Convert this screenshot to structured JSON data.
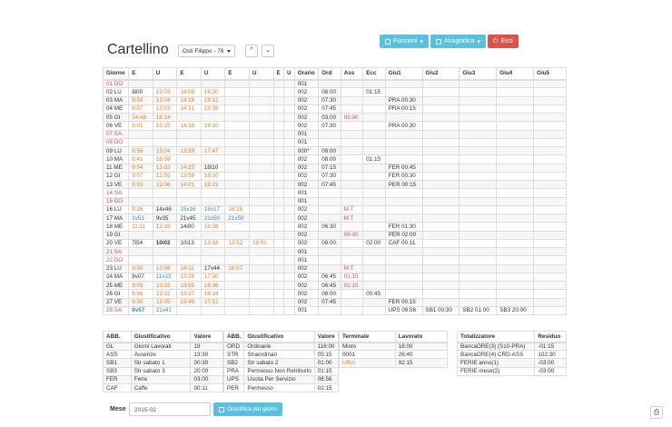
{
  "toolbar": {
    "funzioni": "Funzioni",
    "anagrafica": "Anagrafica",
    "esci": "Esci"
  },
  "page_title": "Cartellino",
  "employee_select": "Osti Filippo - 76",
  "nav": {
    "prev": "^",
    "next": "v"
  },
  "columns": [
    "Giorno",
    "E",
    "U",
    "E",
    "U",
    "E",
    "U",
    "E",
    "U",
    "Orario",
    "Ord",
    "Ass",
    "Ecc",
    "Giu1",
    "Giu2",
    "Giu3",
    "Giu4",
    "Giu5"
  ],
  "rows": [
    {
      "c": [
        "01 DO",
        "",
        "",
        "",
        "",
        "",
        "",
        "",
        "",
        "001",
        "",
        "",
        "",
        "",
        "",
        "",
        "",
        ""
      ],
      "red": true
    },
    {
      "c": [
        "02 LU",
        "8i00",
        "13:03",
        "14:08",
        "18:30",
        "",
        "",
        "",
        "",
        "002",
        "08:00",
        "",
        "01:15",
        "",
        "",
        "",
        "",
        ""
      ]
    },
    {
      "c": [
        "03 MA",
        "8:58",
        "13:04",
        "14:18",
        "18:12",
        "",
        "",
        "",
        "",
        "002",
        "07:30",
        "",
        "",
        "PRA 00:30",
        "",
        "",
        "",
        ""
      ]
    },
    {
      "c": [
        "04 ME",
        "8:57",
        "13:03",
        "14:31",
        "18:36",
        "",
        "",
        "",
        "",
        "002",
        "07:45",
        "",
        "",
        "PRA 00:15",
        "",
        "",
        "",
        ""
      ]
    },
    {
      "c": [
        "05 GI",
        "14:48",
        "18:14",
        "",
        "",
        "",
        "",
        "",
        "",
        "002",
        "03:00",
        "05:00",
        "",
        "",
        "",
        "",
        "",
        ""
      ]
    },
    {
      "c": [
        "06 VE",
        "9:01",
        "13:15",
        "14:18",
        "18:10",
        "",
        "",
        "",
        "",
        "002",
        "07:30",
        "",
        "",
        "PRA 00:30",
        "",
        "",
        "",
        ""
      ]
    },
    {
      "c": [
        "07 SA",
        "",
        "",
        "",
        "",
        "",
        "",
        "",
        "",
        "001",
        "",
        "",
        "",
        "",
        "",
        "",
        "",
        ""
      ],
      "red": true
    },
    {
      "c": [
        "08 DO",
        "",
        "",
        "",
        "",
        "",
        "",
        "",
        "",
        "001",
        "",
        "",
        "",
        "",
        "",
        "",
        "",
        ""
      ],
      "red": true
    },
    {
      "c": [
        "09 LU",
        "8:56",
        "13:04",
        "13:59",
        "17:47",
        "",
        "",
        "",
        "",
        "000*",
        "08:00",
        "",
        "",
        "",
        "",
        "",
        "",
        ""
      ]
    },
    {
      "c": [
        "10 MA",
        "8:41",
        "18:09",
        "",
        "",
        "",
        "",
        "",
        "",
        "002",
        "08:00",
        "",
        "01:15",
        "",
        "",
        "",
        "",
        ""
      ]
    },
    {
      "c": [
        "11 ME",
        "9:04",
        "13:03",
        "14:25",
        "18i10",
        "",
        "",
        "",
        "",
        "002",
        "07:15",
        "",
        "",
        "FER 00:45",
        "",
        "",
        "",
        ""
      ]
    },
    {
      "c": [
        "12 GI",
        "9:07",
        "12:59",
        "13:59",
        "18:10",
        "",
        "",
        "",
        "",
        "002",
        "07:30",
        "",
        "",
        "FER 00:30",
        "",
        "",
        "",
        ""
      ]
    },
    {
      "c": [
        "13 VE",
        "9:03",
        "13:06",
        "14:01",
        "18:21",
        "",
        "",
        "",
        "",
        "002",
        "07:45",
        "",
        "",
        "PER 00:15",
        "",
        "",
        "",
        ""
      ]
    },
    {
      "c": [
        "14 SA",
        "",
        "",
        "",
        "",
        "",
        "",
        "",
        "",
        "001",
        "",
        "",
        "",
        "",
        "",
        "",
        "",
        ""
      ],
      "red": true
    },
    {
      "c": [
        "15 DO",
        "",
        "",
        "",
        "",
        "",
        "",
        "",
        "",
        "001",
        "",
        "",
        "",
        "",
        "",
        "",
        "",
        ""
      ],
      "red": true
    },
    {
      "c": [
        "16 LU",
        "9:16",
        "14x46",
        "15v16",
        "15v17",
        "18:15",
        "",
        "",
        "",
        "002",
        "",
        "M.T",
        "",
        "",
        "",
        "",
        "",
        ""
      ]
    },
    {
      "c": [
        "17 MA",
        "1v51",
        "9v35",
        "21v45",
        "21v50",
        "21v50",
        "",
        "",
        "",
        "002",
        "",
        "M.T",
        "",
        "",
        "",
        "",
        "",
        ""
      ]
    },
    {
      "c": [
        "18 ME",
        "11:11",
        "13:18",
        "14i00",
        "18:38",
        "",
        "",
        "",
        "",
        "002",
        "06:30",
        "",
        "",
        "FER 01:30",
        "",
        "",
        "",
        ""
      ]
    },
    {
      "c": [
        "19 GI",
        "",
        "",
        "",
        "",
        "",
        "",
        "",
        "",
        "002",
        "",
        "06:00",
        "",
        "PER 02:00",
        "",
        "",
        "",
        ""
      ]
    },
    {
      "c": [
        "20 VE",
        "7i54",
        "10i02",
        "10i13",
        "13:16",
        "13:52",
        "19:01",
        "",
        "",
        "002",
        "08:00",
        "",
        "02:00",
        "CAF 00:11",
        "",
        "",
        "",
        ""
      ]
    },
    {
      "c": [
        "21 SA",
        "",
        "",
        "",
        "",
        "",
        "",
        "",
        "",
        "001",
        "",
        "",
        "",
        "",
        "",
        "",
        "",
        ""
      ],
      "red": true
    },
    {
      "c": [
        "22 DO",
        "",
        "",
        "",
        "",
        "",
        "",
        "",
        "",
        "001",
        "",
        "",
        "",
        "",
        "",
        "",
        "",
        ""
      ],
      "red": true
    },
    {
      "c": [
        "23 LU",
        "9:00",
        "13:08",
        "14:11",
        "17v44",
        "18:07",
        "",
        "",
        "",
        "002",
        "",
        "M.T",
        "",
        "",
        "",
        "",
        "",
        ""
      ]
    },
    {
      "c": [
        "24 MA",
        "8v07",
        "11v23",
        "13:28",
        "17:20",
        "",
        "",
        "",
        "",
        "002",
        "06:45",
        "01:15",
        "",
        "",
        "",
        "",
        "",
        ""
      ]
    },
    {
      "c": [
        "25 ME",
        "9:05",
        "13:32",
        "13:55",
        "16:36",
        "",
        "",
        "",
        "",
        "002",
        "06:45",
        "01:15",
        "",
        "",
        "",
        "",
        "",
        ""
      ]
    },
    {
      "c": [
        "26 GI",
        "8:56",
        "13:31",
        "13:37",
        "18:14",
        "",
        "",
        "",
        "",
        "002",
        "08:00",
        "",
        "00:45",
        "",
        "",
        "",
        "",
        ""
      ]
    },
    {
      "c": [
        "27 VE",
        "9:00",
        "13:05",
        "13:49",
        "17:51",
        "",
        "",
        "",
        "",
        "002",
        "07:45",
        "",
        "",
        "FER 00:15",
        "",
        "",
        "",
        ""
      ]
    },
    {
      "c": [
        "28 SA",
        "8v57",
        "21v41",
        "",
        "",
        "",
        "",
        "",
        "",
        "001",
        "",
        "",
        "",
        "UPS 08:56",
        "SB1 00:30",
        "SB2 01:00",
        "SB3 20:00",
        ""
      ],
      "red": true
    }
  ],
  "giust_left": {
    "headers": [
      "ABB.",
      "Giustificativo",
      "Valore"
    ],
    "rows": [
      [
        "GL",
        "Giorni Lavorati",
        "19"
      ],
      [
        "ASS",
        "Assenze",
        "13:30"
      ],
      [
        "SB1",
        "Str sabato 1",
        "00:30"
      ],
      [
        "SB3",
        "Str sabato 3",
        "20:00"
      ],
      [
        "FER",
        "Ferie",
        "03:00"
      ],
      [
        "CAF",
        "Caffe",
        "00:11"
      ]
    ]
  },
  "giust_right": {
    "headers": [
      "ABB.",
      "Giustificativo",
      "Valore"
    ],
    "rows": [
      [
        "ORD",
        "Ordinarie",
        "116:00"
      ],
      [
        "STR",
        "Straordinari",
        "05:15"
      ],
      [
        "SB2",
        "Str sabato 2",
        "01:00"
      ],
      [
        "PRA",
        "Permesso Non Retribuito",
        "01:15"
      ],
      [
        "UPS",
        "Uscita Per Servizio",
        "08:56"
      ],
      [
        "PER",
        "Permesso",
        "02:15"
      ]
    ]
  },
  "terminali": {
    "headers": [
      "Terminale",
      "Lavorato"
    ],
    "rows": [
      [
        "Misto",
        "16:00"
      ],
      [
        "0001",
        "26:40"
      ],
      [
        "Uffici",
        "92:15"
      ]
    ]
  },
  "totalizzatori": {
    "headers": [
      "Totalizzatore",
      "Residuo"
    ],
    "rows": [
      [
        "BancaORE(3) (S10-PRA)",
        "-01:15"
      ],
      [
        "BancaORE(4) CRD-ASS",
        "102:30"
      ],
      [
        "FERIE anno(1)",
        "-03:00"
      ],
      [
        "FERIE mese(2)",
        "-03:00"
      ]
    ]
  },
  "mese": {
    "label": "Mese",
    "value": "2015-02",
    "button": "Giustifica più giorni"
  }
}
